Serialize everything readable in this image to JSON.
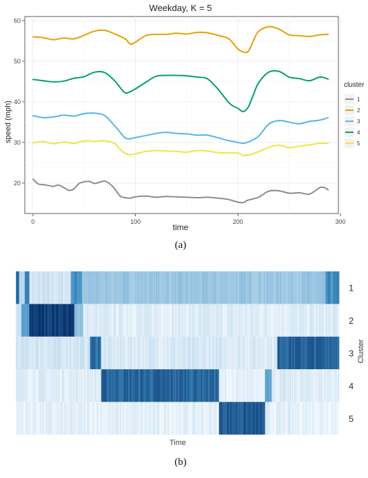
{
  "chart_data": [
    {
      "type": "line",
      "title": "Weekday, K = 5",
      "xlabel": "time",
      "ylabel": "speed (mph)",
      "xlim": [
        -8,
        298
      ],
      "ylim": [
        12.5,
        61
      ],
      "x_ticks": [
        "0",
        "100",
        "200",
        "300"
      ],
      "x_tick_values": [
        0,
        100,
        200,
        300
      ],
      "y_ticks": [
        "20",
        "30",
        "40",
        "50",
        "60"
      ],
      "y_tick_values": [
        20,
        30,
        40,
        50,
        60
      ],
      "grid": true,
      "legend": {
        "title": "cluster",
        "placement": "right"
      },
      "series": [
        {
          "name": "1",
          "color": "#8c8c8c",
          "x": [
            0,
            5,
            10,
            15,
            20,
            25,
            30,
            35,
            40,
            45,
            50,
            55,
            60,
            65,
            70,
            75,
            80,
            85,
            90,
            95,
            100,
            110,
            120,
            130,
            140,
            150,
            160,
            170,
            180,
            190,
            200,
            205,
            210,
            220,
            230,
            240,
            250,
            260,
            270,
            280,
            285,
            288
          ],
          "y": [
            21,
            19.8,
            19.6,
            19.4,
            19.2,
            19.5,
            18.9,
            18.2,
            18.6,
            19.9,
            20.3,
            20.4,
            19.9,
            20.2,
            20.5,
            19.8,
            18.5,
            16.8,
            16.4,
            16.3,
            16.6,
            16.8,
            16.5,
            16.7,
            16.6,
            16.5,
            16.4,
            16.5,
            16.3,
            16,
            15.3,
            15.2,
            15.8,
            16.5,
            18,
            18.1,
            17.5,
            17.6,
            17.3,
            18.9,
            18.8,
            18.3
          ]
        },
        {
          "name": "2",
          "color": "#e69f00",
          "x": [
            0,
            10,
            20,
            30,
            40,
            50,
            60,
            70,
            80,
            90,
            95,
            100,
            110,
            120,
            130,
            140,
            150,
            160,
            170,
            180,
            190,
            195,
            200,
            205,
            210,
            215,
            220,
            230,
            240,
            250,
            260,
            270,
            280,
            288
          ],
          "y": [
            56,
            55.8,
            55.3,
            55.7,
            55.5,
            56.4,
            57.4,
            57.6,
            56.7,
            55.5,
            54.2,
            54.7,
            56.3,
            56.6,
            56.6,
            56.9,
            56.7,
            57.1,
            57,
            56.4,
            55.7,
            54.5,
            53,
            52.3,
            52.4,
            55,
            57.3,
            58.5,
            57.9,
            56.5,
            56.3,
            56.1,
            56.5,
            56.6
          ]
        },
        {
          "name": "3",
          "color": "#56b4e9",
          "x": [
            0,
            10,
            20,
            30,
            40,
            50,
            60,
            70,
            80,
            85,
            90,
            95,
            100,
            110,
            120,
            130,
            140,
            150,
            160,
            170,
            180,
            190,
            200,
            205,
            210,
            220,
            230,
            240,
            250,
            260,
            270,
            280,
            288
          ],
          "y": [
            36.6,
            36.1,
            36.3,
            36.7,
            36.5,
            37.1,
            37.2,
            36.6,
            34,
            32.5,
            31.1,
            30.9,
            31.2,
            31.7,
            32.2,
            32.5,
            32.2,
            32.1,
            31.8,
            31.8,
            31.2,
            30.5,
            30,
            29.8,
            30.1,
            31.5,
            34.5,
            35.4,
            35,
            34.6,
            35.2,
            35.5,
            36.1
          ]
        },
        {
          "name": "4",
          "color": "#009e73",
          "x": [
            0,
            10,
            20,
            30,
            40,
            50,
            60,
            70,
            80,
            85,
            90,
            95,
            100,
            110,
            120,
            130,
            140,
            150,
            160,
            170,
            180,
            190,
            195,
            200,
            205,
            210,
            215,
            220,
            230,
            240,
            250,
            260,
            270,
            280,
            288
          ],
          "y": [
            45.5,
            45.2,
            44.9,
            45.1,
            45.8,
            46.2,
            47.3,
            47.2,
            45.1,
            43.5,
            42.2,
            42.5,
            43.2,
            44.8,
            46.3,
            46.5,
            46.5,
            46.4,
            46.1,
            45.7,
            43.3,
            40.1,
            39,
            38.4,
            37.6,
            38.7,
            41.7,
            44.6,
            47.3,
            47.5,
            46.1,
            45.7,
            45.2,
            46.1,
            45.6
          ]
        },
        {
          "name": "5",
          "color": "#f0e442",
          "x": [
            0,
            10,
            20,
            30,
            40,
            50,
            60,
            70,
            80,
            85,
            90,
            95,
            100,
            110,
            120,
            130,
            140,
            150,
            160,
            170,
            180,
            190,
            200,
            205,
            210,
            220,
            230,
            240,
            250,
            260,
            270,
            280,
            288
          ],
          "y": [
            29.9,
            30.2,
            29.7,
            30.1,
            29.8,
            30.4,
            30.3,
            30.4,
            29.7,
            28.3,
            27.3,
            27,
            27.2,
            27.8,
            28,
            27.9,
            27.8,
            27.6,
            28,
            27.9,
            27.5,
            27.4,
            27.4,
            26.8,
            26.9,
            27.7,
            28.8,
            29.3,
            28.7,
            29.1,
            29.4,
            29.8,
            29.8
          ]
        }
      ]
    },
    {
      "type": "heatmap",
      "xlabel": "Time",
      "ylabel": "Cluster",
      "rows": [
        "1",
        "2",
        "3",
        "4",
        "5"
      ],
      "colors": {
        "low": "#f7fbff",
        "high": "#08306b"
      },
      "row_profiles": [
        {
          "row": "1",
          "segments": [
            [
              0,
              0.012,
              0.75
            ],
            [
              0.012,
              0.028,
              0.2
            ],
            [
              0.028,
              0.04,
              0.65
            ],
            [
              0.04,
              0.17,
              0.12
            ],
            [
              0.17,
              0.205,
              0.6
            ],
            [
              0.205,
              0.96,
              0.3
            ],
            [
              0.96,
              1,
              0.6
            ]
          ]
        },
        {
          "row": "2",
          "segments": [
            [
              0,
              0.018,
              0.15
            ],
            [
              0.018,
              0.04,
              0.5
            ],
            [
              0.04,
              0.18,
              0.95
            ],
            [
              0.18,
              0.21,
              0.35
            ],
            [
              0.21,
              1,
              0.08
            ]
          ]
        },
        {
          "row": "3",
          "segments": [
            [
              0,
              0.23,
              0.12
            ],
            [
              0.23,
              0.265,
              0.75
            ],
            [
              0.265,
              0.81,
              0.1
            ],
            [
              0.81,
              1,
              0.8
            ]
          ]
        },
        {
          "row": "4",
          "segments": [
            [
              0,
              0.265,
              0.08
            ],
            [
              0.265,
              0.63,
              0.78
            ],
            [
              0.63,
              0.77,
              0.05
            ],
            [
              0.77,
              0.79,
              0.55
            ],
            [
              0.79,
              1,
              0.08
            ]
          ]
        },
        {
          "row": "5",
          "segments": [
            [
              0,
              0.63,
              0.06
            ],
            [
              0.63,
              0.77,
              0.82
            ],
            [
              0.77,
              1,
              0.06
            ]
          ]
        }
      ]
    }
  ],
  "captions": {
    "a": "(a)",
    "b": "(b)"
  }
}
